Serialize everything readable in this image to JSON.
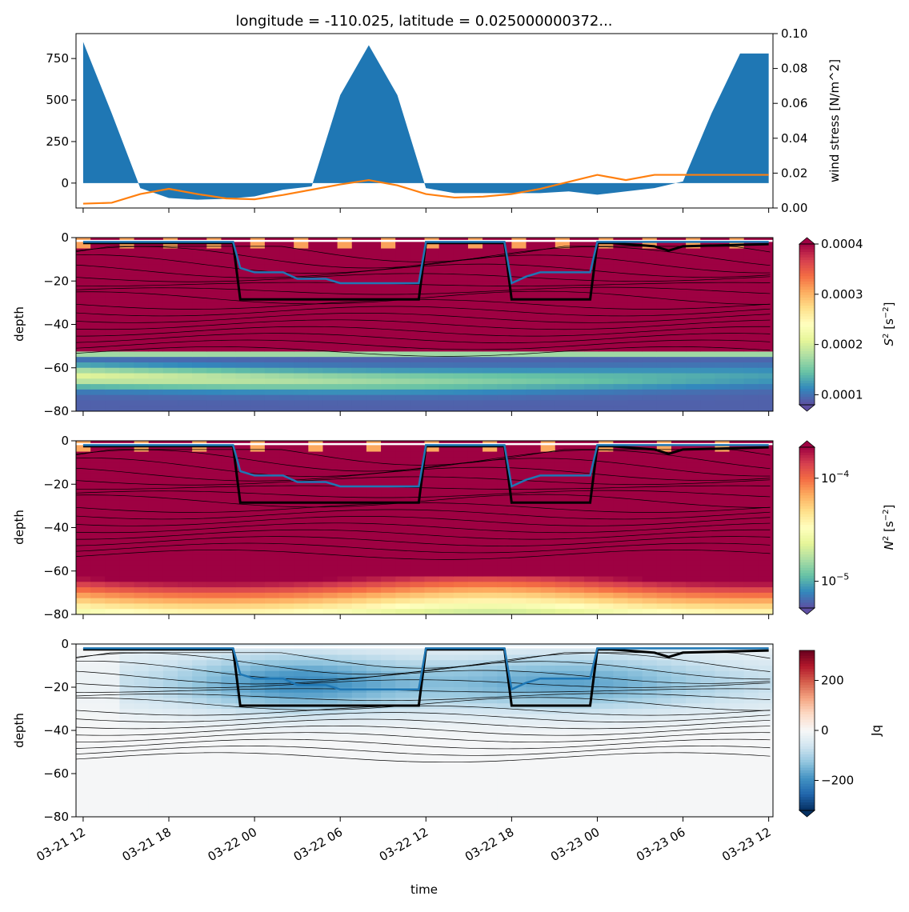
{
  "chart_data": [
    {
      "type": "area",
      "title": "longitude = -110.025, latitude = 0.025000000372...",
      "xlabel": "",
      "ylabel": "",
      "y2label": "wind stress [N/m^2]",
      "ylim": [
        -150,
        900
      ],
      "y2lim": [
        0.0,
        0.1
      ],
      "yticks": [
        {
          "v": 750,
          "t": "750"
        },
        {
          "v": 500,
          "t": "500"
        },
        {
          "v": 250,
          "t": "250"
        },
        {
          "v": 0,
          "t": "0"
        }
      ],
      "y2ticks": [
        {
          "v": 0.1,
          "t": "0.10"
        },
        {
          "v": 0.08,
          "t": "0.08"
        },
        {
          "v": 0.06,
          "t": "0.06"
        },
        {
          "v": 0.04,
          "t": "0.04"
        },
        {
          "v": 0.02,
          "t": "0.02"
        },
        {
          "v": 0.0,
          "t": "0.00"
        }
      ],
      "colors": {
        "area": "#1f77b4",
        "line": "#ff7f0e"
      },
      "series": [
        {
          "kind": "area",
          "x_hours": [
            0,
            2,
            4,
            6,
            8,
            10,
            12,
            14,
            16,
            18,
            20,
            22,
            24,
            26,
            28,
            30,
            32,
            34,
            36,
            38,
            40,
            42,
            44,
            46,
            48
          ],
          "values": [
            850,
            420,
            -30,
            -90,
            -100,
            -95,
            -80,
            -40,
            -20,
            530,
            830,
            530,
            -30,
            -60,
            -60,
            -60,
            -60,
            -50,
            -70,
            -50,
            -30,
            10,
            420,
            780,
            780
          ]
        },
        {
          "kind": "line",
          "axis": "right",
          "x_hours": [
            0,
            2,
            4,
            6,
            8,
            10,
            12,
            14,
            16,
            18,
            20,
            22,
            24,
            26,
            28,
            30,
            32,
            34,
            36,
            38,
            40,
            42,
            44,
            46,
            48
          ],
          "values": [
            0.0025,
            0.003,
            0.008,
            0.011,
            0.008,
            0.0055,
            0.005,
            0.0075,
            0.0105,
            0.0135,
            0.016,
            0.013,
            0.008,
            0.006,
            0.0065,
            0.008,
            0.011,
            0.015,
            0.019,
            0.016,
            0.019,
            0.019,
            0.019,
            0.019,
            0.019
          ]
        }
      ]
    },
    {
      "type": "heatmap",
      "xlabel": "",
      "ylabel": "depth",
      "ylim": [
        -80,
        0
      ],
      "yticks": [
        {
          "v": 0,
          "t": "0"
        },
        {
          "v": -20,
          "t": "−20"
        },
        {
          "v": -40,
          "t": "−40"
        },
        {
          "v": -60,
          "t": "−60"
        },
        {
          "v": -80,
          "t": "−80"
        }
      ],
      "colorbar": {
        "label_main": "S",
        "label_sup": "2",
        "label_unit": " [s",
        "label_unit_sup": "−2",
        "label_end": "]",
        "cmap": "Spectral_r",
        "range": [
          8e-05,
          0.0004
        ],
        "ticks": [
          {
            "v": 0.0004,
            "t": "0.0004"
          },
          {
            "v": 0.0003,
            "t": "0.0003"
          },
          {
            "v": 0.0002,
            "t": "0.0002"
          },
          {
            "v": 0.0001,
            "t": "0.0001"
          }
        ],
        "extend": "both"
      }
    },
    {
      "type": "heatmap",
      "xlabel": "",
      "ylabel": "depth",
      "ylim": [
        -80,
        0
      ],
      "yticks": [
        {
          "v": 0,
          "t": "0"
        },
        {
          "v": -20,
          "t": "−20"
        },
        {
          "v": -40,
          "t": "−40"
        },
        {
          "v": -60,
          "t": "−60"
        },
        {
          "v": -80,
          "t": "−80"
        }
      ],
      "colorbar": {
        "label_main": "N",
        "label_sup": "2",
        "label_unit": " [s",
        "label_unit_sup": "−2",
        "label_end": "]",
        "cmap": "Spectral_r",
        "scale": "log",
        "range": [
          5.5e-06,
          0.0002
        ],
        "ticks": [
          {
            "v": 0.0001,
            "base": "10",
            "exp": "−4"
          },
          {
            "v": 1e-05,
            "base": "10",
            "exp": "−5"
          }
        ],
        "extend": "both"
      }
    },
    {
      "type": "heatmap",
      "xlabel": "time",
      "ylabel": "depth",
      "ylim": [
        -80,
        0
      ],
      "yticks": [
        {
          "v": 0,
          "t": "0"
        },
        {
          "v": -20,
          "t": "−20"
        },
        {
          "v": -40,
          "t": "−40"
        },
        {
          "v": -60,
          "t": "−60"
        },
        {
          "v": -80,
          "t": "−80"
        }
      ],
      "colorbar": {
        "label_main": "Jq",
        "cmap": "RdBu_r",
        "range": [
          -320,
          320
        ],
        "ticks": [
          {
            "v": 200,
            "t": "200"
          },
          {
            "v": 0,
            "t": "0"
          },
          {
            "v": -200,
            "t": "−200"
          }
        ],
        "extend": "min"
      }
    }
  ],
  "shared_x": {
    "xlim_hours": [
      -0.5,
      48.3
    ],
    "ticks": [
      {
        "h": 0,
        "t": "03-21 12"
      },
      {
        "h": 6,
        "t": "03-21 18"
      },
      {
        "h": 12,
        "t": "03-22 00"
      },
      {
        "h": 18,
        "t": "03-22 06"
      },
      {
        "h": 24,
        "t": "03-22 12"
      },
      {
        "h": 30,
        "t": "03-22 18"
      },
      {
        "h": 36,
        "t": "03-23 00"
      },
      {
        "h": 42,
        "t": "03-23 06"
      },
      {
        "h": 48,
        "t": "03-23 12"
      }
    ]
  },
  "overlays": {
    "black_line": {
      "color": "#000000",
      "x_hours": [
        0,
        5,
        10.5,
        11,
        17.5,
        18,
        23.5,
        24,
        29.5,
        30,
        35.5,
        36,
        37,
        40,
        41,
        42,
        48
      ],
      "depth": [
        -2.5,
        -2.5,
        -2.5,
        -28.5,
        -28.5,
        -28.5,
        -28.5,
        -2.5,
        -2.5,
        -28.5,
        -28.5,
        -2.5,
        -2.5,
        -4,
        -6,
        -4,
        -3
      ]
    },
    "blue_line": {
      "color": "#1f77b4",
      "x_hours": [
        0,
        5,
        10.5,
        11,
        12,
        13,
        14,
        15,
        16,
        17,
        18,
        19,
        20,
        21,
        22,
        23.5,
        24,
        29.5,
        30,
        31,
        32,
        33,
        34,
        35.5,
        36,
        48
      ],
      "depth": [
        -2,
        -2,
        -2,
        -14,
        -16,
        -16,
        -16,
        -19,
        -19,
        -19,
        -21,
        -21,
        -21,
        -21,
        -21,
        -21,
        -2,
        -2,
        -21,
        -18,
        -16,
        -16,
        -16,
        -16,
        -2,
        -2
      ]
    }
  }
}
